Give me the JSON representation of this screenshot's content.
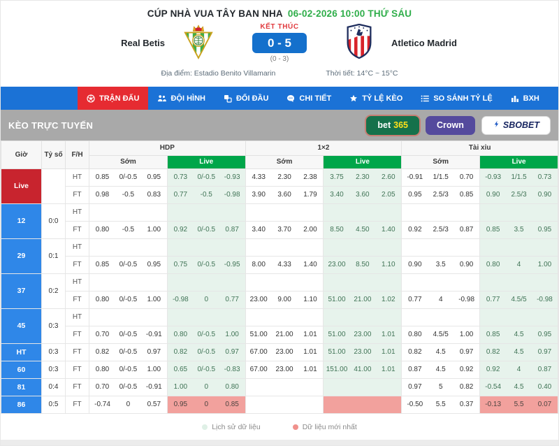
{
  "header": {
    "tournament": "CÚP NHÀ VUA TÂY BAN NHA",
    "datetime": "06-02-2026 10:00 THỨ SÁU",
    "home_team": "Real Betis",
    "away_team": "Atletico Madrid",
    "status": "KẾT THÚC",
    "score": "0 - 5",
    "ht_score": "(0 - 3)",
    "venue_label": "Địa điểm:",
    "venue": "Estadio Benito Villamarin",
    "weather_label": "Thời tiết:",
    "weather": "14°C ~ 15°C"
  },
  "nav": {
    "tabs": [
      {
        "key": "tran-dau",
        "label": "TRẬN ĐẤU",
        "icon": "soccer-ball-icon",
        "active": true
      },
      {
        "key": "doi-hinh",
        "label": "ĐỘI HÌNH",
        "icon": "team-icon",
        "active": false
      },
      {
        "key": "doi-dau",
        "label": "ĐỐI ĐẦU",
        "icon": "versus-icon",
        "active": false
      },
      {
        "key": "chi-tiet",
        "label": "CHI TIẾT",
        "icon": "chat-icon",
        "active": false
      },
      {
        "key": "ty-le-keo",
        "label": "TỶ LỆ KÈO",
        "icon": "star-icon",
        "active": false
      },
      {
        "key": "so-sanh-ty-le",
        "label": "SO SÁNH TỶ LỆ",
        "icon": "compare-list-icon",
        "active": false
      },
      {
        "key": "bxh",
        "label": "BXH",
        "icon": "bar-chart-icon",
        "active": false
      }
    ]
  },
  "odds_section": {
    "title": "KÈO TRỰC TUYẾN",
    "bookmakers": [
      {
        "key": "bet365",
        "bg": "#15714b",
        "selected": true,
        "parts": [
          {
            "text": "bet",
            "color": "#ffffff"
          },
          {
            "text": "365",
            "color": "#ffe11a"
          }
        ]
      },
      {
        "key": "crown",
        "bg": "#544a9d",
        "selected": false,
        "parts": [
          {
            "text": "Crown",
            "color": "#ffffff"
          }
        ]
      },
      {
        "key": "sbobet",
        "bg": "#ffffff",
        "selected": false,
        "icon": "sbobet-bolt-icon",
        "parts": [
          {
            "text": "SBOBET",
            "color": "#15235f"
          }
        ]
      }
    ]
  },
  "table": {
    "col_time": "Giờ",
    "col_score": "Tỷ số",
    "col_fh": "F/H",
    "group_hdp": "HDP",
    "group_1x2": "1×2",
    "group_tx": "Tài xỉu",
    "sub_early": "Sớm",
    "sub_live": "Live",
    "rows": [
      {
        "time": "Live",
        "time_style": "red",
        "score": "",
        "live_highlight": false,
        "subrows": [
          {
            "fh": "HT",
            "cells": [
              [
                "0.85",
                "0/-0.5",
                "0.95"
              ],
              [
                "0.73",
                "0/-0.5",
                "-0.93"
              ],
              [
                "4.33",
                "2.30",
                "2.38"
              ],
              [
                "3.75",
                "2.30",
                "2.60"
              ],
              [
                "-0.91",
                "1/1.5",
                "0.70"
              ],
              [
                "-0.93",
                "1/1.5",
                "0.73"
              ]
            ]
          },
          {
            "fh": "FT",
            "cells": [
              [
                "0.98",
                "-0.5",
                "0.83"
              ],
              [
                "0.77",
                "-0.5",
                "-0.98"
              ],
              [
                "3.90",
                "3.60",
                "1.79"
              ],
              [
                "3.40",
                "3.60",
                "2.05"
              ],
              [
                "0.95",
                "2.5/3",
                "0.85"
              ],
              [
                "0.90",
                "2.5/3",
                "0.90"
              ]
            ]
          }
        ]
      },
      {
        "time": "12",
        "time_style": "blue",
        "score": "0:0",
        "live_highlight": false,
        "subrows": [
          {
            "fh": "HT",
            "cells": [
              [],
              [],
              [],
              [],
              [],
              []
            ]
          },
          {
            "fh": "FT",
            "cells": [
              [
                "0.80",
                "-0.5",
                "1.00"
              ],
              [
                "0.92",
                "0/-0.5",
                "0.87"
              ],
              [
                "3.40",
                "3.70",
                "2.00"
              ],
              [
                "8.50",
                "4.50",
                "1.40"
              ],
              [
                "0.92",
                "2.5/3",
                "0.87"
              ],
              [
                "0.85",
                "3.5",
                "0.95"
              ]
            ]
          }
        ]
      },
      {
        "time": "29",
        "time_style": "blue",
        "score": "0:1",
        "live_highlight": false,
        "subrows": [
          {
            "fh": "HT",
            "cells": [
              [],
              [],
              [],
              [],
              [],
              []
            ]
          },
          {
            "fh": "FT",
            "cells": [
              [
                "0.85",
                "0/-0.5",
                "0.95"
              ],
              [
                "0.75",
                "0/-0.5",
                "-0.95"
              ],
              [
                "8.00",
                "4.33",
                "1.40"
              ],
              [
                "23.00",
                "8.50",
                "1.10"
              ],
              [
                "0.90",
                "3.5",
                "0.90"
              ],
              [
                "0.80",
                "4",
                "1.00"
              ]
            ]
          }
        ]
      },
      {
        "time": "37",
        "time_style": "blue",
        "score": "0:2",
        "live_highlight": false,
        "subrows": [
          {
            "fh": "HT",
            "cells": [
              [],
              [],
              [],
              [],
              [],
              []
            ]
          },
          {
            "fh": "FT",
            "cells": [
              [
                "0.80",
                "0/-0.5",
                "1.00"
              ],
              [
                "-0.98",
                "0",
                "0.77"
              ],
              [
                "23.00",
                "9.00",
                "1.10"
              ],
              [
                "51.00",
                "21.00",
                "1.02"
              ],
              [
                "0.77",
                "4",
                "-0.98"
              ],
              [
                "0.77",
                "4.5/5",
                "-0.98"
              ]
            ]
          }
        ]
      },
      {
        "time": "45",
        "time_style": "blue",
        "score": "0:3",
        "live_highlight": false,
        "subrows": [
          {
            "fh": "HT",
            "cells": [
              [],
              [],
              [],
              [],
              [],
              []
            ]
          },
          {
            "fh": "FT",
            "cells": [
              [
                "0.70",
                "0/-0.5",
                "-0.91"
              ],
              [
                "0.80",
                "0/-0.5",
                "1.00"
              ],
              [
                "51.00",
                "21.00",
                "1.01"
              ],
              [
                "51.00",
                "23.00",
                "1.01"
              ],
              [
                "0.80",
                "4.5/5",
                "1.00"
              ],
              [
                "0.85",
                "4.5",
                "0.95"
              ]
            ]
          }
        ]
      },
      {
        "time": "HT",
        "time_style": "blue",
        "score": "0:3",
        "live_highlight": false,
        "subrows": [
          {
            "fh": "FT",
            "cells": [
              [
                "0.82",
                "0/-0.5",
                "0.97"
              ],
              [
                "0.82",
                "0/-0.5",
                "0.97"
              ],
              [
                "67.00",
                "23.00",
                "1.01"
              ],
              [
                "51.00",
                "23.00",
                "1.01"
              ],
              [
                "0.82",
                "4.5",
                "0.97"
              ],
              [
                "0.82",
                "4.5",
                "0.97"
              ]
            ]
          }
        ]
      },
      {
        "time": "60",
        "time_style": "blue",
        "score": "0:3",
        "live_highlight": false,
        "subrows": [
          {
            "fh": "FT",
            "cells": [
              [
                "0.80",
                "0/-0.5",
                "1.00"
              ],
              [
                "0.65",
                "0/-0.5",
                "-0.83"
              ],
              [
                "67.00",
                "23.00",
                "1.01"
              ],
              [
                "151.00",
                "41.00",
                "1.01"
              ],
              [
                "0.87",
                "4.5",
                "0.92"
              ],
              [
                "0.92",
                "4",
                "0.87"
              ]
            ]
          }
        ]
      },
      {
        "time": "81",
        "time_style": "blue",
        "score": "0:4",
        "live_highlight": false,
        "subrows": [
          {
            "fh": "FT",
            "cells": [
              [
                "0.70",
                "0/-0.5",
                "-0.91"
              ],
              [
                "1.00",
                "0",
                "0.80"
              ],
              [],
              [],
              [
                "0.97",
                "5",
                "0.82"
              ],
              [
                "-0.54",
                "4.5",
                "0.40"
              ]
            ]
          }
        ]
      },
      {
        "time": "86",
        "time_style": "blue",
        "score": "0:5",
        "live_highlight": true,
        "subrows": [
          {
            "fh": "FT",
            "cells": [
              [
                "-0.74",
                "0",
                "0.57"
              ],
              [
                "0.95",
                "0",
                "0.85"
              ],
              [],
              [],
              [
                "-0.50",
                "5.5",
                "0.37"
              ],
              [
                "-0.13",
                "5.5",
                "0.07"
              ]
            ]
          }
        ]
      }
    ]
  },
  "legend": [
    {
      "label": "Lịch sử dữ liệu",
      "color": "#dff0e6"
    },
    {
      "label": "Dữ liệu mới nhất",
      "color": "#f0918c"
    }
  ],
  "colors": {
    "nav_blue": "#1b72d6",
    "active_tab_red": "#e62b31",
    "live_row_red": "#c8242e",
    "time_cell_blue": "#2f87e8",
    "score_box_blue": "#1470cc",
    "datetime_green": "#2fae4a",
    "live_header_green": "#00a64a",
    "live_cell_bg": "#e7f3ec",
    "highlight_pink": "#f2a19d",
    "gray_bar": "#a9a9a9"
  }
}
